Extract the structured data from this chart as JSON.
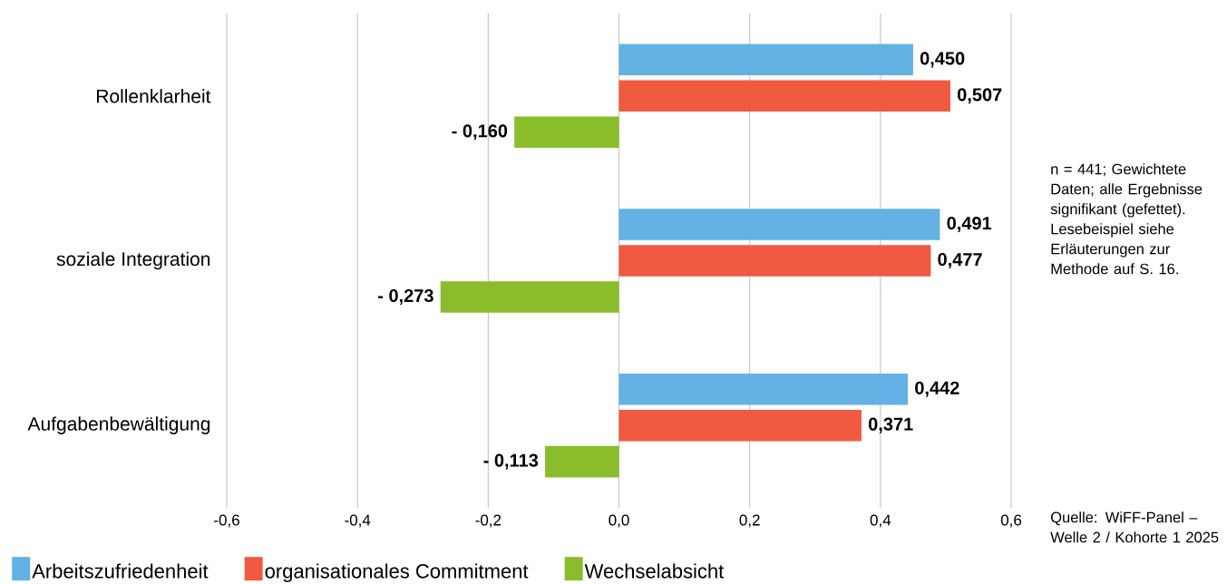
{
  "chart_data": {
    "type": "bar",
    "orientation": "horizontal",
    "categories": [
      "Rollenklarheit",
      "soziale Integration",
      "Aufgabenbewältigung"
    ],
    "series": [
      {
        "name": "Arbeitszufriedenheit",
        "color": "#63b1e5",
        "values": [
          0.45,
          0.491,
          0.442
        ],
        "value_labels": [
          "0,450",
          "0,491",
          "0,442"
        ]
      },
      {
        "name": "organisationales Commitment",
        "color": "#f05a40",
        "values": [
          0.507,
          0.477,
          0.371
        ],
        "value_labels": [
          "0,507",
          "0,477",
          "0,371"
        ]
      },
      {
        "name": "Wechselabsicht",
        "color": "#8abd2b",
        "values": [
          -0.16,
          -0.273,
          -0.113
        ],
        "value_labels": [
          "- 0,160",
          "- 0,273",
          "- 0,113"
        ]
      }
    ],
    "xlim": [
      -0.6,
      0.6
    ],
    "xticks": [
      {
        "value": -0.6,
        "label": "-0,6"
      },
      {
        "value": -0.4,
        "label": "-0,4"
      },
      {
        "value": -0.2,
        "label": "-0,2"
      },
      {
        "value": 0,
        "label": "0,0"
      },
      {
        "value": 0.2,
        "label": "0,2"
      },
      {
        "value": 0.4,
        "label": "0,4"
      },
      {
        "value": 0.6,
        "label": "0,6"
      }
    ],
    "grid": "x",
    "legend": "bottom",
    "annotations": [
      "n = 441; Gewichtete Daten; alle Ergebnisse signifikant (gefettet). Lesebeispiel siehe Erläuterungen zur Methode auf S. 16.",
      "Quelle: WiFF-Panel – Welle 2 / Kohorte 1 2025"
    ]
  }
}
